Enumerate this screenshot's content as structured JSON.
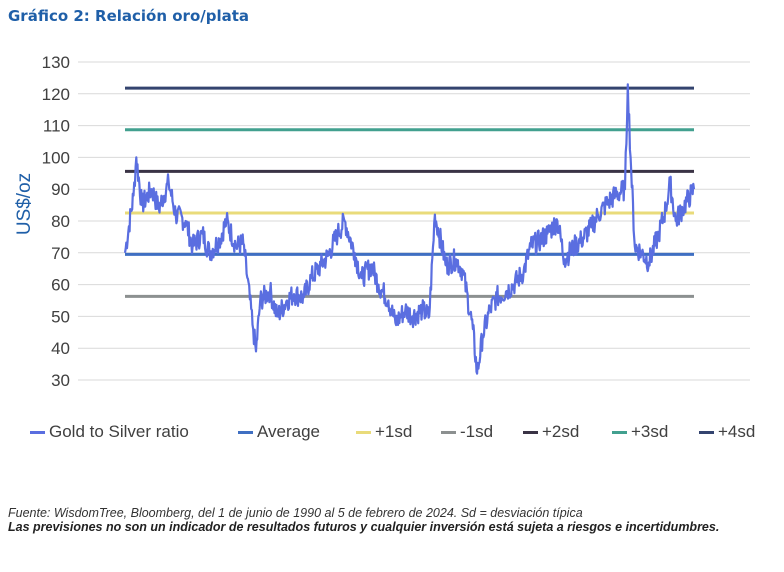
{
  "title": "Gráfico 2: Relación oro/plata",
  "chart_data": {
    "type": "line",
    "ylabel": "US$/oz",
    "xlabel": "",
    "ylim": [
      30,
      130
    ],
    "yticks": [
      "130",
      "120",
      "110",
      "100",
      "90",
      "80",
      "70",
      "60",
      "50",
      "40",
      "30"
    ],
    "grid": true,
    "legend_position": "bottom",
    "date_range": [
      "1990-06-01",
      "2024-02-05"
    ],
    "series": [
      {
        "name": "Gold to Silver ratio",
        "color": "#5a6ee0",
        "values": [
          {
            "x": "1990-06",
            "y": 70
          },
          {
            "x": "1990-12",
            "y": 88
          },
          {
            "x": "1991-02",
            "y": 100
          },
          {
            "x": "1991-06",
            "y": 85
          },
          {
            "x": "1992-01",
            "y": 90
          },
          {
            "x": "1992-06",
            "y": 84
          },
          {
            "x": "1993-01",
            "y": 92
          },
          {
            "x": "1993-06",
            "y": 82
          },
          {
            "x": "1994-01",
            "y": 80
          },
          {
            "x": "1994-06",
            "y": 72
          },
          {
            "x": "1995-01",
            "y": 76
          },
          {
            "x": "1995-06",
            "y": 70
          },
          {
            "x": "1996-01",
            "y": 74
          },
          {
            "x": "1996-06",
            "y": 80
          },
          {
            "x": "1997-01",
            "y": 72
          },
          {
            "x": "1997-06",
            "y": 73
          },
          {
            "x": "1998-01",
            "y": 46
          },
          {
            "x": "1998-03",
            "y": 39
          },
          {
            "x": "1998-06",
            "y": 55
          },
          {
            "x": "1999-01",
            "y": 58
          },
          {
            "x": "1999-06",
            "y": 50
          },
          {
            "x": "2000-01",
            "y": 55
          },
          {
            "x": "2000-06",
            "y": 57
          },
          {
            "x": "2001-01",
            "y": 56
          },
          {
            "x": "2001-06",
            "y": 62
          },
          {
            "x": "2002-01",
            "y": 66
          },
          {
            "x": "2002-06",
            "y": 69
          },
          {
            "x": "2003-01",
            "y": 76
          },
          {
            "x": "2003-06",
            "y": 80
          },
          {
            "x": "2004-01",
            "y": 70
          },
          {
            "x": "2004-06",
            "y": 62
          },
          {
            "x": "2005-01",
            "y": 66
          },
          {
            "x": "2005-06",
            "y": 60
          },
          {
            "x": "2006-01",
            "y": 55
          },
          {
            "x": "2006-06",
            "y": 48
          },
          {
            "x": "2007-01",
            "y": 52
          },
          {
            "x": "2007-06",
            "y": 50
          },
          {
            "x": "2008-01",
            "y": 52
          },
          {
            "x": "2008-06",
            "y": 50
          },
          {
            "x": "2008-10",
            "y": 82
          },
          {
            "x": "2009-01",
            "y": 76
          },
          {
            "x": "2009-06",
            "y": 66
          },
          {
            "x": "2010-01",
            "y": 68
          },
          {
            "x": "2010-06",
            "y": 64
          },
          {
            "x": "2011-01",
            "y": 46
          },
          {
            "x": "2011-04",
            "y": 32
          },
          {
            "x": "2011-08",
            "y": 44
          },
          {
            "x": "2012-01",
            "y": 52
          },
          {
            "x": "2012-06",
            "y": 56
          },
          {
            "x": "2013-01",
            "y": 58
          },
          {
            "x": "2013-06",
            "y": 60
          },
          {
            "x": "2014-01",
            "y": 64
          },
          {
            "x": "2014-06",
            "y": 72
          },
          {
            "x": "2015-01",
            "y": 74
          },
          {
            "x": "2015-06",
            "y": 76
          },
          {
            "x": "2016-01",
            "y": 80
          },
          {
            "x": "2016-06",
            "y": 68
          },
          {
            "x": "2017-01",
            "y": 72
          },
          {
            "x": "2017-06",
            "y": 74
          },
          {
            "x": "2018-01",
            "y": 78
          },
          {
            "x": "2018-06",
            "y": 82
          },
          {
            "x": "2019-01",
            "y": 86
          },
          {
            "x": "2019-06",
            "y": 88
          },
          {
            "x": "2020-01",
            "y": 90
          },
          {
            "x": "2020-03",
            "y": 123
          },
          {
            "x": "2020-05",
            "y": 100
          },
          {
            "x": "2020-08",
            "y": 72
          },
          {
            "x": "2021-01",
            "y": 70
          },
          {
            "x": "2021-06",
            "y": 67
          },
          {
            "x": "2022-01",
            "y": 76
          },
          {
            "x": "2022-06",
            "y": 84
          },
          {
            "x": "2022-09",
            "y": 92
          },
          {
            "x": "2023-01",
            "y": 80
          },
          {
            "x": "2023-06",
            "y": 84
          },
          {
            "x": "2024-02",
            "y": 90
          }
        ]
      },
      {
        "name": "Average",
        "color": "#3f6fc2",
        "y": 69.5
      },
      {
        "name": "+1sd",
        "color": "#e9db7a",
        "y": 82.5
      },
      {
        "name": "-1sd",
        "color": "#8c9090",
        "y": 56.3
      },
      {
        "name": "+2sd",
        "color": "#3a3345",
        "y": 95.6
      },
      {
        "name": "+3sd",
        "color": "#42a08f",
        "y": 108.7
      },
      {
        "name": "+4sd",
        "color": "#34446f",
        "y": 121.8
      }
    ]
  },
  "legend": {
    "items": [
      "Gold to Silver ratio",
      "Average",
      "+1sd",
      "-1sd",
      "+2sd",
      "+3sd",
      "+4sd"
    ]
  },
  "footer": {
    "source": "Fuente: WisdomTree, Bloomberg, del 1 de junio de 1990 al 5 de febrero de 2024. Sd = desviación típica",
    "disclaimer": "Las previsiones no son un indicador de resultados futuros y cualquier inversión está sujeta a riesgos e incertidumbres."
  }
}
